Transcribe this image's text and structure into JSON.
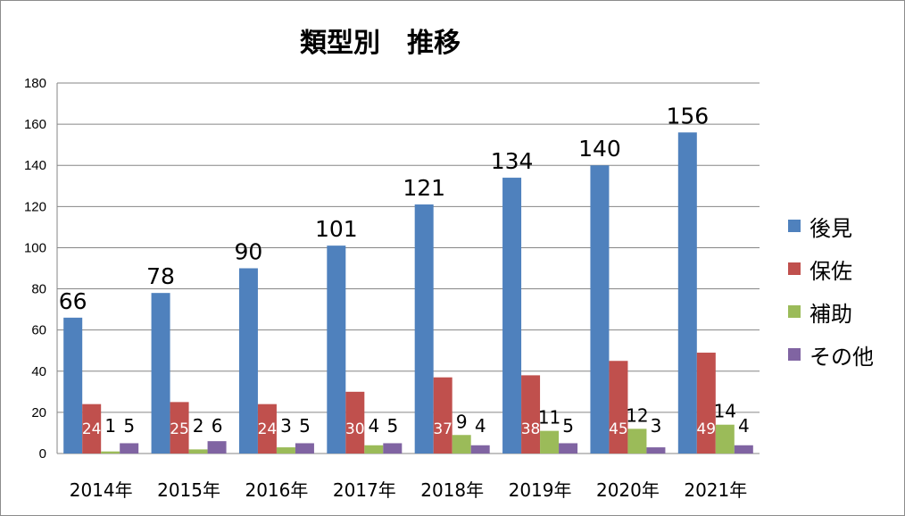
{
  "chart_data": {
    "type": "bar",
    "title": "類型別　推移",
    "categories": [
      "2014年",
      "2015年",
      "2016年",
      "2017年",
      "2018年",
      "2019年",
      "2020年",
      "2021年"
    ],
    "series": [
      {
        "name": "後見",
        "color": "#4f81bd",
        "values": [
          66,
          78,
          90,
          101,
          121,
          134,
          140,
          156
        ]
      },
      {
        "name": "保佐",
        "color": "#c0504d",
        "values": [
          24,
          25,
          24,
          30,
          37,
          38,
          45,
          49
        ]
      },
      {
        "name": "補助",
        "color": "#9bbb59",
        "values": [
          1,
          2,
          3,
          4,
          9,
          11,
          12,
          14
        ]
      },
      {
        "name": "その他",
        "color": "#8064a2",
        "values": [
          5,
          6,
          5,
          5,
          4,
          5,
          3,
          4
        ]
      }
    ],
    "ylim": [
      0,
      180
    ],
    "yticks": [
      0,
      20,
      40,
      60,
      80,
      100,
      120,
      140,
      160,
      180
    ],
    "grid": true,
    "legend_position": "right"
  }
}
